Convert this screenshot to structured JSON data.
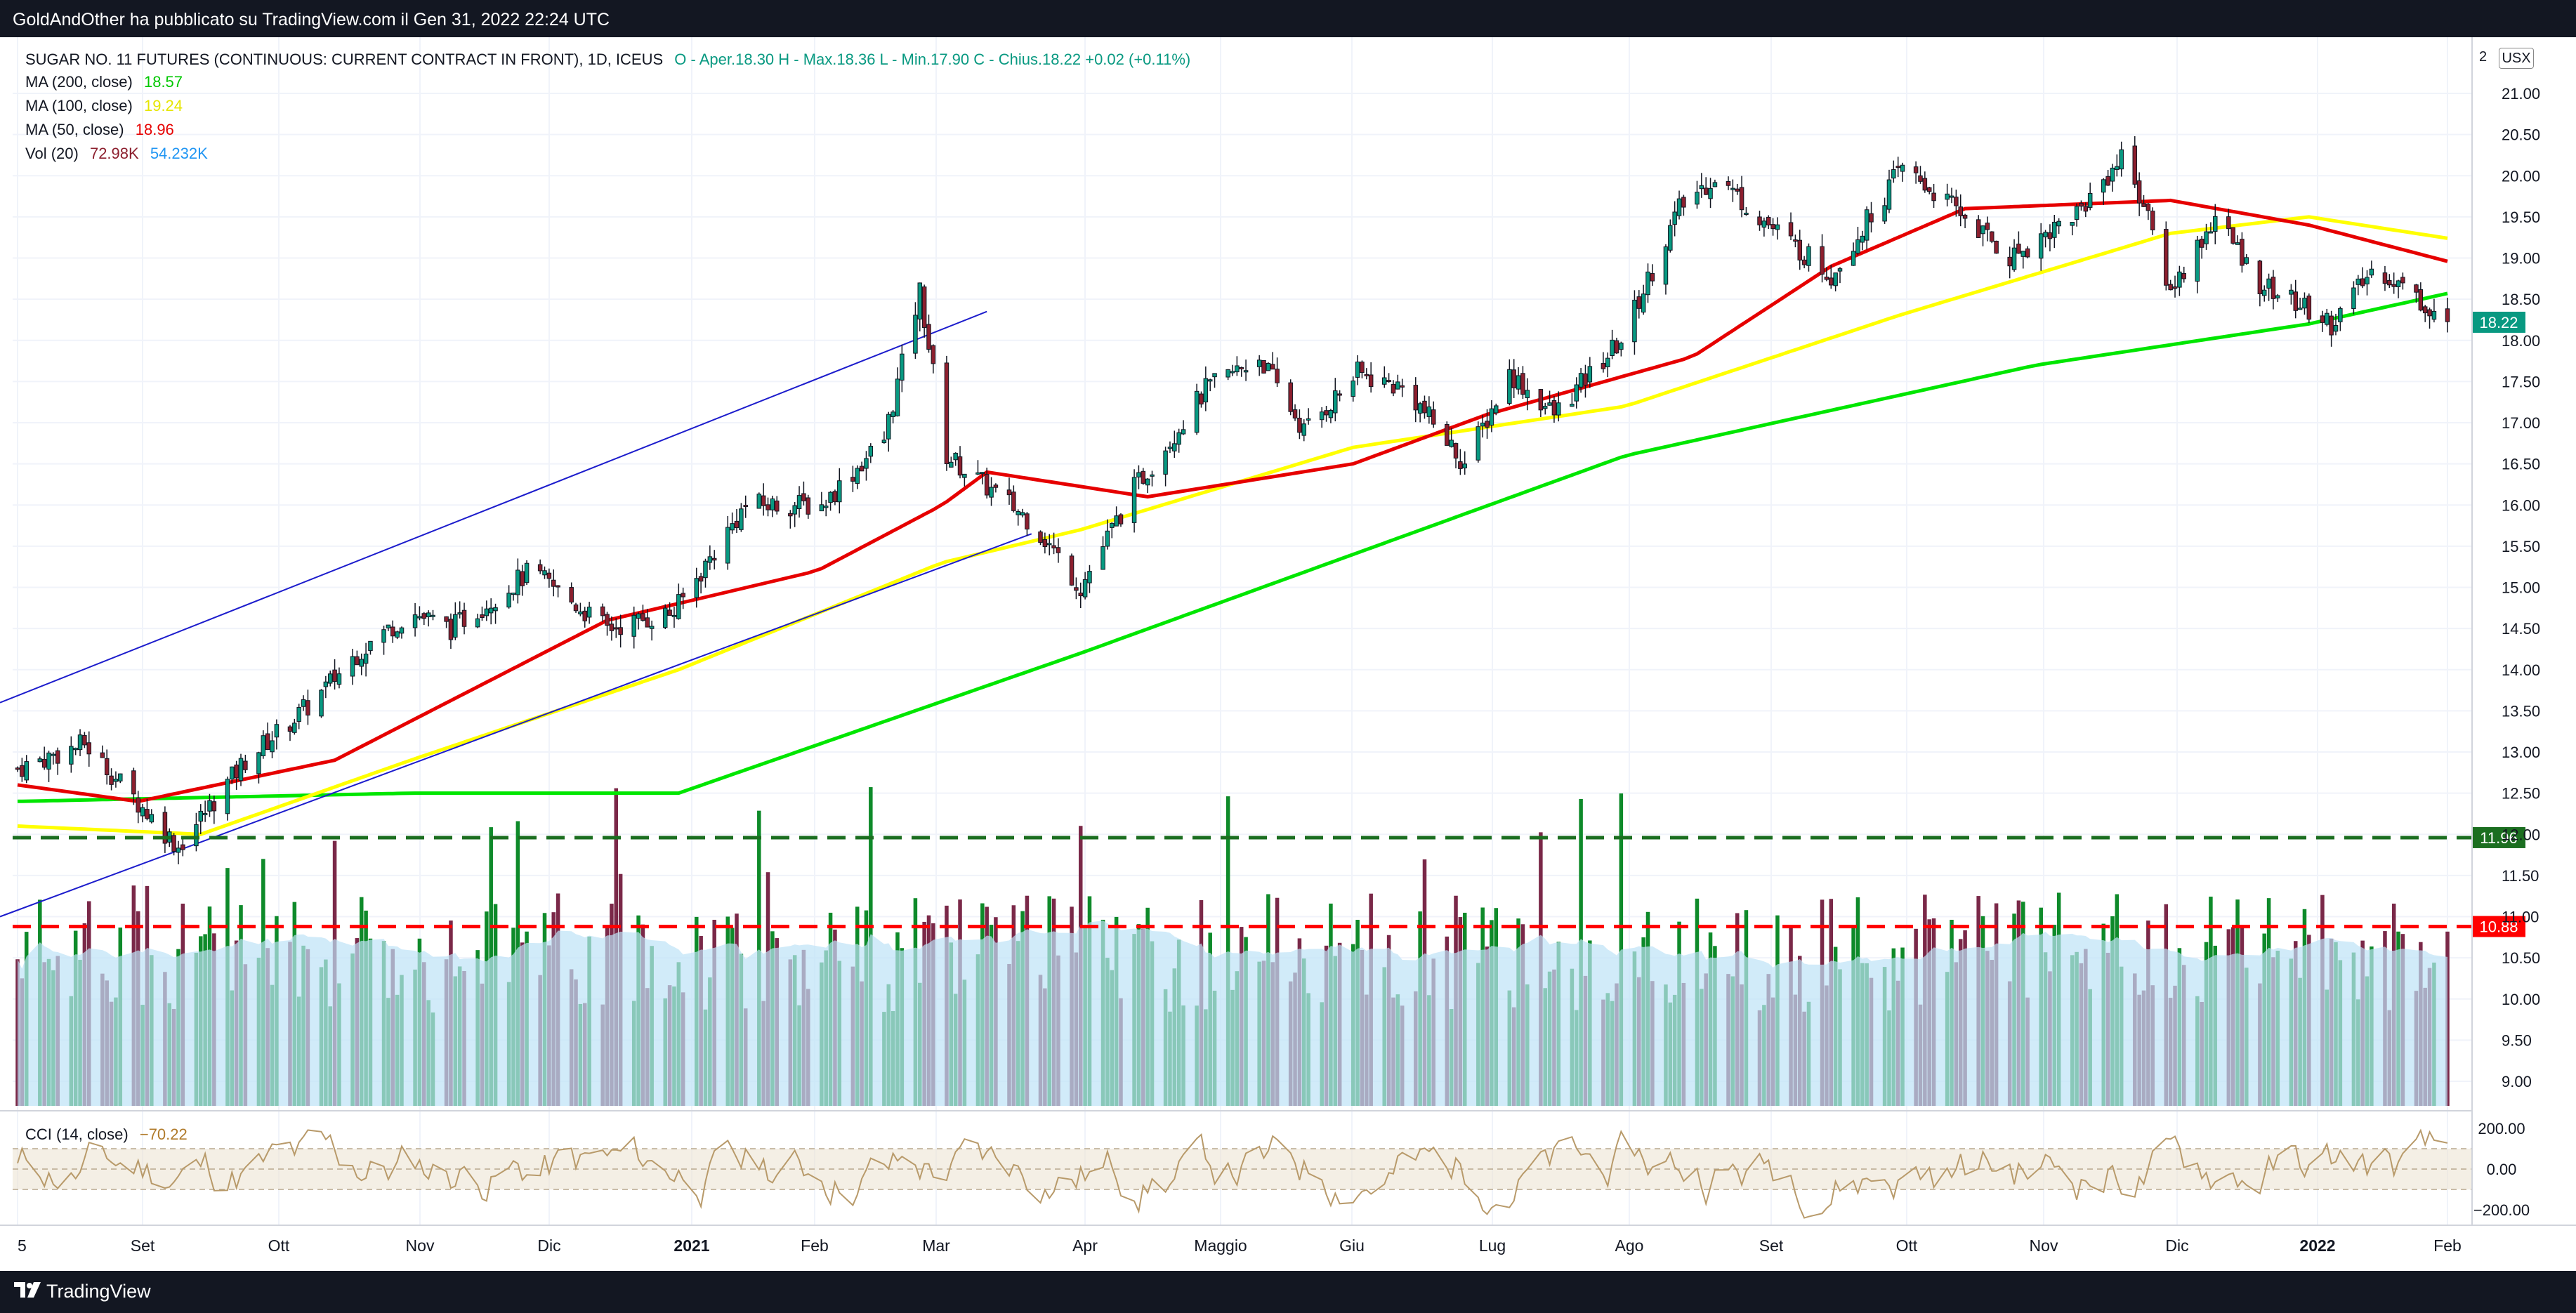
{
  "header": {
    "publisher": "GoldAndOther ha pubblicato su TradingView.com il Gen 31, 2022 22:24 UTC"
  },
  "footer": {
    "brand": "TradingView"
  },
  "legend": {
    "symbol": "SUGAR NO. 11 FUTURES (CONTINUOUS: CURRENT CONTRACT IN FRONT), 1D, ICEUS",
    "ohlc": "O - Aper.18.30  H - Max.18.36  L - Min.17.90  C - Chius.18.22  +0.02 (+0.11%)",
    "ma200_label": "MA (200, close)",
    "ma200_value": "18.57",
    "ma100_label": "MA (100, close)",
    "ma100_value": "19.24",
    "ma50_label": "MA (50, close)",
    "ma50_value": "18.96",
    "vol_label": "Vol (20)",
    "vol_value1": "72.98K",
    "vol_value2": "54.232K",
    "cci_label": "CCI (14, close)",
    "cci_value": "−70.22"
  },
  "currency": {
    "prefix": "2",
    "code": "USX"
  },
  "colors": {
    "ma200": "#00e600",
    "ma100": "#ffff00",
    "ma50": "#e60000",
    "up": "#089981",
    "down": "#8c1f2e",
    "vol_ma": "#bde3f7",
    "cci": "#b89a6a",
    "dash_green": "#1b6e20",
    "dash_red": "#ff0000"
  },
  "chart_data": [
    {
      "type": "candlestick",
      "title": "SUGAR NO. 11 FUTURES (CONTINUOUS: CURRENT CONTRACT IN FRONT), 1D, ICEUS",
      "ylim": [
        8.7,
        21.3
      ],
      "y_ticks": [
        "21.00",
        "20.50",
        "20.00",
        "19.50",
        "19.00",
        "18.50",
        "18.00",
        "17.50",
        "17.00",
        "16.50",
        "16.00",
        "15.50",
        "15.00",
        "14.50",
        "14.00",
        "13.50",
        "13.00",
        "12.50",
        "12.00",
        "11.50",
        "11.00",
        "10.50",
        "10.00",
        "9.50",
        "9.00"
      ],
      "x_labels": [
        "5",
        "Set",
        "Ott",
        "Nov",
        "Dic",
        "2021",
        "Feb",
        "Mar",
        "Apr",
        "Maggio",
        "Giu",
        "Lug",
        "Ago",
        "Set",
        "Ott",
        "Nov",
        "Dic",
        "2022",
        "Feb"
      ],
      "close_anchors": [
        [
          "2020-08-05",
          12.8
        ],
        [
          "2020-08-20",
          13.1
        ],
        [
          "2020-09-10",
          11.85
        ],
        [
          "2020-09-25",
          12.9
        ],
        [
          "2020-10-10",
          13.6
        ],
        [
          "2020-10-20",
          14.2
        ],
        [
          "2020-11-01",
          14.7
        ],
        [
          "2020-11-10",
          14.5
        ],
        [
          "2020-11-28",
          15.2
        ],
        [
          "2020-12-15",
          14.5
        ],
        [
          "2020-12-30",
          14.7
        ],
        [
          "2021-01-15",
          16.0
        ],
        [
          "2021-02-01",
          16.0
        ],
        [
          "2021-02-15",
          16.8
        ],
        [
          "2021-02-23",
          18.6
        ],
        [
          "2021-03-01",
          16.6
        ],
        [
          "2021-03-20",
          15.8
        ],
        [
          "2021-03-31",
          15.0
        ],
        [
          "2021-04-12",
          16.2
        ],
        [
          "2021-04-28",
          17.4
        ],
        [
          "2021-05-10",
          17.8
        ],
        [
          "2021-05-20",
          16.9
        ],
        [
          "2021-06-01",
          17.6
        ],
        [
          "2021-06-12",
          17.4
        ],
        [
          "2021-06-25",
          16.5
        ],
        [
          "2021-07-05",
          17.6
        ],
        [
          "2021-07-15",
          17.1
        ],
        [
          "2021-07-30",
          18.0
        ],
        [
          "2021-08-12",
          19.6
        ],
        [
          "2021-08-20",
          20.0
        ],
        [
          "2021-09-01",
          19.4
        ],
        [
          "2021-09-15",
          18.8
        ],
        [
          "2021-10-01",
          20.1
        ],
        [
          "2021-10-15",
          19.5
        ],
        [
          "2021-10-25",
          19.0
        ],
        [
          "2021-11-10",
          19.6
        ],
        [
          "2021-11-20",
          20.3
        ],
        [
          "2021-11-30",
          18.6
        ],
        [
          "2021-12-10",
          19.5
        ],
        [
          "2021-12-20",
          18.7
        ],
        [
          "2022-01-05",
          18.2
        ],
        [
          "2022-01-15",
          18.9
        ],
        [
          "2022-01-31",
          18.22
        ]
      ],
      "series": [
        {
          "name": "MA (200, close)",
          "last": 18.57,
          "anchors": [
            [
              "2020-08-05",
              12.4
            ],
            [
              "2020-11-01",
              12.5
            ],
            [
              "2020-12-31",
              12.5
            ],
            [
              "2021-03-31",
              14.2
            ],
            [
              "2021-07-31",
              16.6
            ],
            [
              "2021-10-31",
              17.7
            ],
            [
              "2021-12-31",
              18.2
            ],
            [
              "2022-01-31",
              18.57
            ]
          ]
        },
        {
          "name": "MA (100, close)",
          "last": 19.24,
          "anchors": [
            [
              "2020-08-05",
              12.1
            ],
            [
              "2020-09-15",
              12.0
            ],
            [
              "2020-11-01",
              12.9
            ],
            [
              "2020-12-31",
              14.0
            ],
            [
              "2021-02-28",
              15.3
            ],
            [
              "2021-03-31",
              15.7
            ],
            [
              "2021-05-31",
              16.7
            ],
            [
              "2021-07-31",
              17.2
            ],
            [
              "2021-09-30",
              18.3
            ],
            [
              "2021-11-30",
              19.3
            ],
            [
              "2021-12-31",
              19.5
            ],
            [
              "2022-01-31",
              19.24
            ]
          ]
        },
        {
          "name": "MA (50, close)",
          "last": 18.96,
          "anchors": [
            [
              "2020-08-05",
              12.6
            ],
            [
              "2020-09-01",
              12.4
            ],
            [
              "2020-10-15",
              12.9
            ],
            [
              "2020-12-15",
              14.6
            ],
            [
              "2021-01-31",
              15.2
            ],
            [
              "2021-02-28",
              16.0
            ],
            [
              "2021-03-10",
              16.4
            ],
            [
              "2021-04-15",
              16.1
            ],
            [
              "2021-05-31",
              16.5
            ],
            [
              "2021-06-30",
              17.1
            ],
            [
              "2021-08-15",
              17.8
            ],
            [
              "2021-09-15",
              18.9
            ],
            [
              "2021-10-15",
              19.6
            ],
            [
              "2021-11-30",
              19.7
            ],
            [
              "2021-12-31",
              19.4
            ],
            [
              "2022-01-31",
              18.96
            ]
          ]
        }
      ],
      "trendlines": [
        {
          "name": "upper-channel",
          "from": [
            "2020-08-05",
            13.6
          ],
          "to": [
            "2021-03-10",
            18.35
          ]
        },
        {
          "name": "lower-channel",
          "from": [
            "2020-08-05",
            11.0
          ],
          "to": [
            "2021-03-20",
            15.65
          ]
        }
      ],
      "horizontal_levels": [
        {
          "value": 11.96,
          "label": "11.96",
          "color": "#1b6e20"
        },
        {
          "value": 10.88,
          "label": "10.88",
          "color": "#ff0000"
        }
      ],
      "last_price": {
        "value": 18.22,
        "label": "18.22"
      }
    },
    {
      "type": "bar",
      "title": "Vol (20)",
      "last": "72.98K",
      "ma_last": "54.232K"
    },
    {
      "type": "line",
      "title": "CCI (14, close)",
      "last": -70.22,
      "ylim": [
        -250,
        250
      ],
      "y_ticks": [
        "200.00",
        "0.00",
        "−200.00"
      ],
      "band": [
        -100,
        100
      ]
    }
  ]
}
